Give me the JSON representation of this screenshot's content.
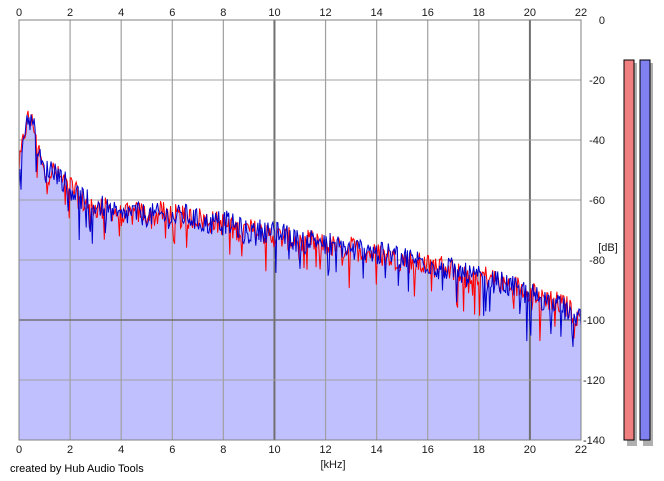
{
  "credit": "created by Hub Audio Tools",
  "meters": {
    "left_color": "#f08080",
    "right_color": "#8080f0",
    "shadow_color": "#b0b0b0"
  },
  "chart_data": {
    "type": "line",
    "title": "",
    "xlabel": "[kHz]",
    "ylabel": "[dB]",
    "x_unit": "kHz",
    "y_unit": "dB",
    "xlim": [
      0,
      22
    ],
    "ylim": [
      -140,
      0
    ],
    "x_ticks": [
      0,
      2,
      4,
      6,
      8,
      10,
      12,
      14,
      16,
      18,
      20,
      22
    ],
    "y_ticks": [
      0,
      -20,
      -40,
      -60,
      -80,
      -100,
      -120,
      -140
    ],
    "grid": true,
    "fill_color": "#c0c0ff",
    "colors": {
      "left": "#ff0000",
      "right": "#0000cc"
    },
    "series": [
      {
        "color": "#ff0000",
        "x": [
          0.0,
          0.2,
          0.35,
          0.6,
          0.8,
          1.0,
          1.3,
          1.6,
          2.0,
          2.4,
          2.8,
          3.2,
          3.6,
          4.0,
          4.4,
          4.8,
          5.2,
          5.6,
          6.0,
          6.5,
          7.0,
          7.4,
          8.0,
          8.5,
          9.0,
          9.5,
          10.0,
          10.5,
          11.0,
          11.5,
          12.0,
          12.5,
          13.0,
          13.5,
          14.0,
          14.5,
          15.0,
          15.5,
          16.0,
          16.5,
          17.0,
          17.5,
          18.0,
          18.5,
          19.0,
          19.5,
          20.0,
          20.5,
          21.0,
          21.5,
          22.0
        ],
        "y": [
          -50,
          -38,
          -33,
          -35,
          -45,
          -52,
          -50,
          -53,
          -55,
          -60,
          -62,
          -63,
          -63,
          -65,
          -65,
          -64,
          -66,
          -64,
          -65,
          -66,
          -66,
          -67,
          -68,
          -70,
          -70,
          -71,
          -72,
          -73,
          -73,
          -74,
          -75,
          -76,
          -76,
          -77,
          -78,
          -79,
          -80,
          -81,
          -82,
          -82,
          -83,
          -84,
          -85,
          -86,
          -88,
          -89,
          -90,
          -92,
          -94,
          -96,
          -100
        ]
      },
      {
        "color": "#0000cc",
        "x": [
          0.0,
          0.2,
          0.35,
          0.6,
          0.8,
          1.0,
          1.3,
          1.6,
          2.0,
          2.4,
          2.8,
          3.2,
          3.6,
          4.0,
          4.4,
          4.8,
          5.2,
          5.6,
          6.0,
          6.5,
          7.0,
          7.4,
          8.0,
          8.5,
          9.0,
          9.5,
          10.0,
          10.5,
          11.0,
          11.5,
          12.0,
          12.5,
          13.0,
          13.5,
          14.0,
          14.5,
          15.0,
          15.5,
          16.0,
          16.5,
          17.0,
          17.5,
          18.0,
          18.5,
          19.0,
          19.5,
          20.0,
          20.5,
          21.0,
          21.5,
          22.0
        ],
        "y": [
          -52,
          -37,
          -32,
          -36,
          -46,
          -51,
          -49,
          -52,
          -56,
          -59,
          -61,
          -62,
          -64,
          -66,
          -64,
          -65,
          -65,
          -65,
          -66,
          -65,
          -67,
          -68,
          -67,
          -69,
          -71,
          -70,
          -71,
          -72,
          -74,
          -73,
          -74,
          -75,
          -77,
          -76,
          -78,
          -78,
          -79,
          -80,
          -81,
          -83,
          -83,
          -85,
          -86,
          -87,
          -88,
          -90,
          -91,
          -93,
          -95,
          -97,
          -99
        ]
      }
    ]
  }
}
